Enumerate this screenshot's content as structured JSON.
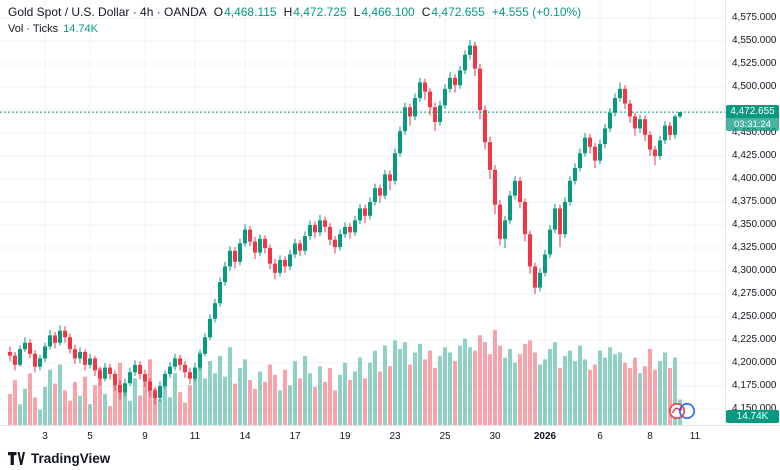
{
  "header": {
    "title": "Gold Spot / U.S. Dollar · 4h · OANDA",
    "ohlc": {
      "o_label": "O",
      "o_value": "4,468.115",
      "h_label": "H",
      "h_value": "4,472.725",
      "l_label": "L",
      "l_value": "4,466.100",
      "c_label": "C",
      "c_value": "4,472.655",
      "change": "+4.555 (+0.10%)"
    },
    "volume_row": {
      "label": "Vol · Ticks",
      "value": "14.74K"
    }
  },
  "price_axis": {
    "labels": [
      "4,575.000",
      "4,550.000",
      "4,525.000",
      "4,500.000",
      "4,475.000",
      "4,450.000",
      "4,425.000",
      "4,400.000",
      "4,375.000",
      "4,350.000",
      "4,325.000",
      "4,300.000",
      "4,275.000",
      "4,250.000",
      "4,225.000",
      "4,200.000",
      "4,175.000",
      "4,150.000"
    ],
    "last_price": "4,472.655",
    "countdown": "03:31:24",
    "volume_badge": "14.74K"
  },
  "branding": {
    "logo_text": "TradingView"
  },
  "chart_data": {
    "type": "candlestick",
    "title": "Gold Spot / U.S. Dollar, 4h, OANDA",
    "last_price": 4472.655,
    "last_bar": {
      "open": 4468.115,
      "high": 4472.725,
      "low": 4466.1,
      "close": 4472.655,
      "change": 4.555,
      "change_pct": 0.1
    },
    "volume_last_k": 14.74,
    "y_ticks": [
      4575,
      4550,
      4525,
      4500,
      4475,
      4450,
      4425,
      4400,
      4375,
      4350,
      4325,
      4300,
      4275,
      4250,
      4225,
      4200,
      4175,
      4150
    ],
    "x_ticks": [
      {
        "label": "3",
        "i": 7
      },
      {
        "label": "5",
        "i": 16
      },
      {
        "label": "9",
        "i": 27
      },
      {
        "label": "11",
        "i": 37
      },
      {
        "label": "14",
        "i": 47
      },
      {
        "label": "17",
        "i": 57
      },
      {
        "label": "19",
        "i": 67
      },
      {
        "label": "23",
        "i": 77
      },
      {
        "label": "25",
        "i": 87
      },
      {
        "label": "30",
        "i": 97
      },
      {
        "label": "2026",
        "i": 107
      },
      {
        "label": "6",
        "i": 118
      },
      {
        "label": "8",
        "i": 128
      },
      {
        "label": "11",
        "i": 137
      }
    ],
    "candles": [
      [
        4212,
        4218,
        4202,
        4208
      ],
      [
        4208,
        4212,
        4192,
        4198
      ],
      [
        4198,
        4219,
        4196,
        4215
      ],
      [
        4215,
        4228,
        4212,
        4222
      ],
      [
        4222,
        4226,
        4205,
        4210
      ],
      [
        4210,
        4214,
        4190,
        4196
      ],
      [
        4196,
        4209,
        4192,
        4205
      ],
      [
        4205,
        4222,
        4201,
        4218
      ],
      [
        4218,
        4236,
        4215,
        4230
      ],
      [
        4230,
        4234,
        4216,
        4222
      ],
      [
        4222,
        4241,
        4219,
        4235
      ],
      [
        4235,
        4240,
        4222,
        4228
      ],
      [
        4228,
        4232,
        4210,
        4215
      ],
      [
        4215,
        4220,
        4199,
        4205
      ],
      [
        4205,
        4217,
        4200,
        4212
      ],
      [
        4212,
        4215,
        4192,
        4198
      ],
      [
        4198,
        4210,
        4194,
        4205
      ],
      [
        4205,
        4208,
        4186,
        4192
      ],
      [
        4192,
        4196,
        4176,
        4183
      ],
      [
        4183,
        4200,
        4180,
        4195
      ],
      [
        4195,
        4199,
        4182,
        4188
      ],
      [
        4188,
        4192,
        4170,
        4176
      ],
      [
        4176,
        4181,
        4160,
        4168
      ],
      [
        4168,
        4183,
        4164,
        4178
      ],
      [
        4178,
        4195,
        4175,
        4190
      ],
      [
        4190,
        4203,
        4186,
        4198
      ],
      [
        4198,
        4202,
        4182,
        4188
      ],
      [
        4188,
        4193,
        4174,
        4180
      ],
      [
        4180,
        4184,
        4163,
        4170
      ],
      [
        4170,
        4174,
        4155,
        4162
      ],
      [
        4162,
        4180,
        4158,
        4175
      ],
      [
        4175,
        4192,
        4172,
        4188
      ],
      [
        4188,
        4201,
        4184,
        4196
      ],
      [
        4196,
        4210,
        4192,
        4205
      ],
      [
        4205,
        4209,
        4192,
        4198
      ],
      [
        4198,
        4202,
        4184,
        4190
      ],
      [
        4190,
        4195,
        4177,
        4183
      ],
      [
        4183,
        4200,
        4180,
        4195
      ],
      [
        4195,
        4215,
        4192,
        4210
      ],
      [
        4210,
        4232,
        4207,
        4228
      ],
      [
        4228,
        4253,
        4225,
        4248
      ],
      [
        4248,
        4270,
        4244,
        4265
      ],
      [
        4265,
        4293,
        4261,
        4288
      ],
      [
        4288,
        4310,
        4284,
        4305
      ],
      [
        4305,
        4327,
        4300,
        4322
      ],
      [
        4322,
        4326,
        4303,
        4310
      ],
      [
        4310,
        4335,
        4306,
        4330
      ],
      [
        4330,
        4351,
        4326,
        4345
      ],
      [
        4345,
        4349,
        4327,
        4332
      ],
      [
        4332,
        4337,
        4313,
        4320
      ],
      [
        4320,
        4340,
        4316,
        4335
      ],
      [
        4335,
        4339,
        4319,
        4325
      ],
      [
        4325,
        4329,
        4302,
        4308
      ],
      [
        4308,
        4313,
        4291,
        4298
      ],
      [
        4298,
        4317,
        4294,
        4312
      ],
      [
        4312,
        4316,
        4298,
        4305
      ],
      [
        4305,
        4323,
        4301,
        4318
      ],
      [
        4318,
        4335,
        4314,
        4330
      ],
      [
        4330,
        4334,
        4316,
        4322
      ],
      [
        4322,
        4343,
        4318,
        4338
      ],
      [
        4338,
        4355,
        4334,
        4350
      ],
      [
        4350,
        4354,
        4336,
        4342
      ],
      [
        4342,
        4361,
        4338,
        4355
      ],
      [
        4355,
        4359,
        4342,
        4348
      ],
      [
        4348,
        4352,
        4328,
        4334
      ],
      [
        4334,
        4338,
        4319,
        4326
      ],
      [
        4326,
        4345,
        4322,
        4340
      ],
      [
        4340,
        4353,
        4336,
        4348
      ],
      [
        4348,
        4352,
        4335,
        4342
      ],
      [
        4342,
        4360,
        4338,
        4355
      ],
      [
        4355,
        4373,
        4351,
        4368
      ],
      [
        4368,
        4372,
        4352,
        4360
      ],
      [
        4360,
        4380,
        4356,
        4375
      ],
      [
        4375,
        4395,
        4371,
        4390
      ],
      [
        4390,
        4394,
        4374,
        4382
      ],
      [
        4382,
        4410,
        4378,
        4405
      ],
      [
        4405,
        4409,
        4388,
        4398
      ],
      [
        4398,
        4433,
        4394,
        4428
      ],
      [
        4428,
        4457,
        4424,
        4452
      ],
      [
        4452,
        4483,
        4448,
        4478
      ],
      [
        4478,
        4482,
        4458,
        4468
      ],
      [
        4468,
        4493,
        4464,
        4488
      ],
      [
        4488,
        4510,
        4484,
        4505
      ],
      [
        4505,
        4509,
        4486,
        4495
      ],
      [
        4495,
        4499,
        4469,
        4478
      ],
      [
        4478,
        4483,
        4452,
        4462
      ],
      [
        4462,
        4485,
        4458,
        4480
      ],
      [
        4480,
        4503,
        4476,
        4498
      ],
      [
        4498,
        4516,
        4494,
        4510
      ],
      [
        4510,
        4514,
        4494,
        4502
      ],
      [
        4502,
        4523,
        4498,
        4518
      ],
      [
        4518,
        4540,
        4514,
        4535
      ],
      [
        4535,
        4551,
        4530,
        4545
      ],
      [
        4545,
        4549,
        4512,
        4520
      ],
      [
        4520,
        4525,
        4465,
        4475
      ],
      [
        4475,
        4480,
        4432,
        4440
      ],
      [
        4440,
        4446,
        4400,
        4410
      ],
      [
        4410,
        4415,
        4362,
        4372
      ],
      [
        4372,
        4377,
        4328,
        4335
      ],
      [
        4335,
        4360,
        4325,
        4355
      ],
      [
        4355,
        4387,
        4351,
        4382
      ],
      [
        4382,
        4403,
        4378,
        4398
      ],
      [
        4398,
        4402,
        4368,
        4375
      ],
      [
        4375,
        4379,
        4332,
        4340
      ],
      [
        4340,
        4344,
        4297,
        4305
      ],
      [
        4305,
        4309,
        4275,
        4282
      ],
      [
        4282,
        4303,
        4278,
        4298
      ],
      [
        4298,
        4323,
        4294,
        4318
      ],
      [
        4318,
        4350,
        4314,
        4345
      ],
      [
        4345,
        4373,
        4341,
        4368
      ],
      [
        4368,
        4372,
        4326,
        4340
      ],
      [
        4340,
        4380,
        4336,
        4375
      ],
      [
        4375,
        4403,
        4371,
        4398
      ],
      [
        4398,
        4417,
        4394,
        4412
      ],
      [
        4412,
        4433,
        4408,
        4428
      ],
      [
        4428,
        4450,
        4424,
        4445
      ],
      [
        4445,
        4449,
        4428,
        4435
      ],
      [
        4435,
        4439,
        4412,
        4420
      ],
      [
        4420,
        4443,
        4416,
        4438
      ],
      [
        4438,
        4460,
        4434,
        4455
      ],
      [
        4455,
        4477,
        4451,
        4472
      ],
      [
        4472,
        4493,
        4468,
        4488
      ],
      [
        4488,
        4505,
        4484,
        4498
      ],
      [
        4498,
        4502,
        4476,
        4482
      ],
      [
        4482,
        4486,
        4461,
        4468
      ],
      [
        4468,
        4472,
        4447,
        4455
      ],
      [
        4455,
        4470,
        4450,
        4465
      ],
      [
        4465,
        4469,
        4441,
        4448
      ],
      [
        4448,
        4452,
        4425,
        4432
      ],
      [
        4432,
        4436,
        4415,
        4425
      ],
      [
        4425,
        4447,
        4421,
        4442
      ],
      [
        4442,
        4463,
        4438,
        4458
      ],
      [
        4458,
        4462,
        4442,
        4448
      ],
      [
        4448,
        4470,
        4444,
        4468
      ],
      [
        4468.115,
        4472.725,
        4466.1,
        4472.655
      ]
    ],
    "volumes_k": [
      18,
      26,
      12,
      21,
      30,
      16,
      9,
      22,
      32,
      24,
      35,
      20,
      14,
      25,
      17,
      28,
      12,
      23,
      33,
      18,
      11,
      24,
      36,
      19,
      14,
      27,
      17,
      29,
      38,
      21,
      15,
      26,
      16,
      30,
      19,
      13,
      23,
      32,
      42,
      27,
      37,
      30,
      40,
      28,
      45,
      24,
      33,
      38,
      26,
      21,
      31,
      25,
      35,
      29,
      20,
      32,
      23,
      37,
      27,
      40,
      30,
      22,
      34,
      25,
      33,
      20,
      29,
      36,
      26,
      31,
      39,
      27,
      36,
      43,
      31,
      46,
      34,
      49,
      44,
      48,
      35,
      42,
      47,
      38,
      43,
      33,
      40,
      45,
      42,
      37,
      46,
      50,
      45,
      43,
      52,
      48,
      41,
      55,
      46,
      39,
      44,
      36,
      41,
      47,
      49,
      42,
      35,
      38,
      44,
      48,
      33,
      40,
      43,
      37,
      46,
      38,
      32,
      35,
      43,
      39,
      45,
      41,
      42,
      36,
      33,
      39,
      30,
      34,
      44,
      32,
      37,
      42,
      33,
      39,
      14.74
    ],
    "colors": {
      "up": "#089981",
      "down": "#F23645",
      "grid": "#F0F3FA",
      "axis_text": "#131722",
      "price_line": "#089981",
      "vol_opacity": 0.45
    }
  }
}
